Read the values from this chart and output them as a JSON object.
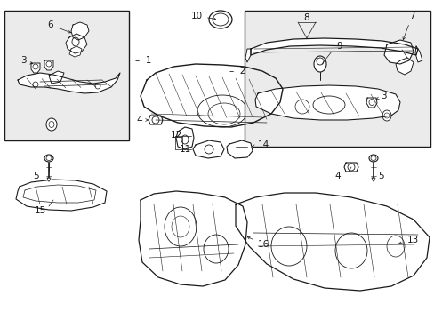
{
  "bg_color": "#ffffff",
  "line_color": "#1a1a1a",
  "box_fill": "#ebebeb",
  "figsize": [
    4.89,
    3.6
  ],
  "dpi": 100,
  "font_size": 7.5
}
